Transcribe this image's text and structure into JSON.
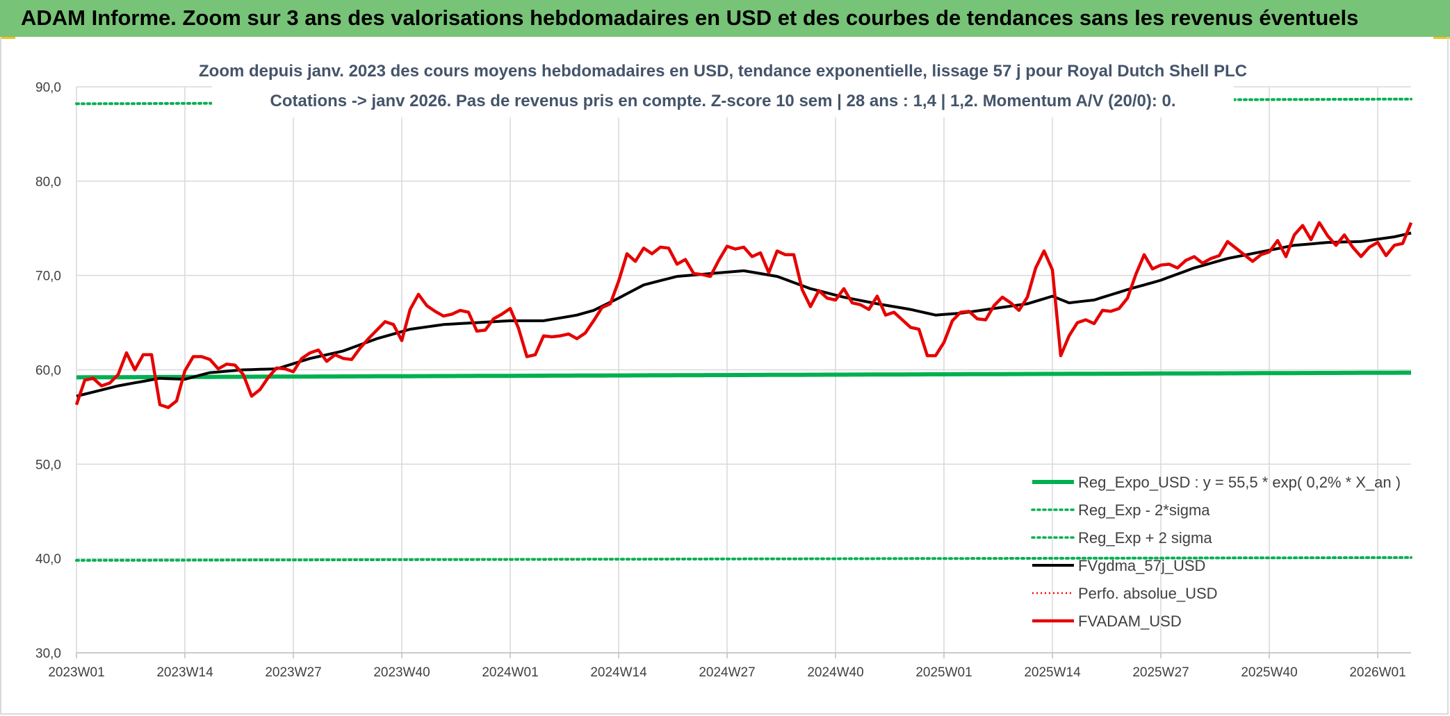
{
  "banner": {
    "title": "ADAM Informe. Zoom sur 3 ans des valorisations hebdomadaires en USD et des courbes de tendances sans les revenus éventuels"
  },
  "colors": {
    "banner_bg": "#77c377",
    "reg_expo": "#00b050",
    "fvgdma": "#000000",
    "fvadam": "#e60000",
    "perfo": "#ff0000",
    "grid": "#d9d9d9"
  },
  "chart_data": {
    "type": "line",
    "title_line1": "Zoom depuis janv. 2023 des cours moyens hebdomadaires en USD, tendance exponentielle, lissage 57 j pour Royal Dutch Shell PLC",
    "title_line2": "Cotations -> janv 2026. Pas de revenus pris en compte. Z-score 10 sem | 28 ans : 1,4  | 1,2. Momentum A/V (20/0): 0.",
    "ylim": [
      30,
      90
    ],
    "yticks": [
      "30,0",
      "40,0",
      "50,0",
      "60,0",
      "70,0",
      "80,0",
      "90,0"
    ],
    "ytick_values": [
      30,
      40,
      50,
      60,
      70,
      80,
      90
    ],
    "n_weeks": 161,
    "xticks": [
      "2023W01",
      "2023W14",
      "2023W27",
      "2023W40",
      "2024W01",
      "2024W14",
      "2024W27",
      "2024W40",
      "2025W01",
      "2025W14",
      "2025W27",
      "2025W40",
      "2026W01"
    ],
    "xtick_indices": [
      0,
      13,
      26,
      39,
      52,
      65,
      78,
      91,
      104,
      117,
      130,
      143,
      156
    ],
    "legend": [
      {
        "key": "reg_expo",
        "label": "Reg_Expo_USD : y = 55,5 * exp( 0,2% *  X_an )",
        "style": "solid-thick"
      },
      {
        "key": "minus2",
        "label": "Reg_Exp - 2*sigma",
        "style": "dotted-green"
      },
      {
        "key": "plus2",
        "label": "Reg_Exp + 2 sigma",
        "style": "dotted-green"
      },
      {
        "key": "fvgdma",
        "label": "FVgdma_57j_USD",
        "style": "solid-black"
      },
      {
        "key": "perfo",
        "label": "Perfo. absolue_USD",
        "style": "dotted-red"
      },
      {
        "key": "fvadam",
        "label": "FVADAM_USD",
        "style": "solid-red"
      }
    ],
    "series": [
      {
        "name": "Reg_Expo_USD",
        "knots": [
          [
            0,
            59.2
          ],
          [
            160,
            59.7
          ]
        ]
      },
      {
        "name": "Reg_Exp - 2*sigma",
        "knots": [
          [
            0,
            39.8
          ],
          [
            160,
            40.1
          ]
        ]
      },
      {
        "name": "Reg_Exp + 2 sigma",
        "knots": [
          [
            0,
            88.2
          ],
          [
            160,
            88.7
          ]
        ]
      },
      {
        "name": "FVgdma_57j_USD",
        "knots": [
          [
            0,
            57.2
          ],
          [
            5,
            58.3
          ],
          [
            10,
            59.1
          ],
          [
            13,
            59.0
          ],
          [
            16,
            59.7
          ],
          [
            20,
            60.0
          ],
          [
            24,
            60.1
          ],
          [
            28,
            61.2
          ],
          [
            32,
            62.0
          ],
          [
            36,
            63.3
          ],
          [
            40,
            64.3
          ],
          [
            44,
            64.8
          ],
          [
            48,
            65.0
          ],
          [
            52,
            65.2
          ],
          [
            56,
            65.2
          ],
          [
            60,
            65.8
          ],
          [
            62,
            66.3
          ],
          [
            65,
            67.6
          ],
          [
            68,
            69.0
          ],
          [
            72,
            69.9
          ],
          [
            76,
            70.2
          ],
          [
            80,
            70.5
          ],
          [
            84,
            69.9
          ],
          [
            88,
            68.6
          ],
          [
            92,
            67.7
          ],
          [
            96,
            67.0
          ],
          [
            100,
            66.4
          ],
          [
            103,
            65.8
          ],
          [
            106,
            66.0
          ],
          [
            110,
            66.5
          ],
          [
            114,
            67.0
          ],
          [
            117,
            67.8
          ],
          [
            119,
            67.1
          ],
          [
            122,
            67.4
          ],
          [
            126,
            68.5
          ],
          [
            130,
            69.5
          ],
          [
            134,
            70.8
          ],
          [
            138,
            71.8
          ],
          [
            142,
            72.5
          ],
          [
            146,
            73.2
          ],
          [
            150,
            73.5
          ],
          [
            154,
            73.6
          ],
          [
            158,
            74.1
          ],
          [
            160,
            74.5
          ]
        ]
      },
      {
        "name": "FVADAM_USD",
        "knots": [
          [
            0,
            56.3
          ],
          [
            1,
            58.9
          ],
          [
            2,
            59.1
          ],
          [
            3,
            58.3
          ],
          [
            4,
            58.6
          ],
          [
            5,
            59.5
          ],
          [
            6,
            61.8
          ],
          [
            7,
            60.0
          ],
          [
            8,
            61.6
          ],
          [
            9,
            61.6
          ],
          [
            10,
            56.3
          ],
          [
            11,
            56.0
          ],
          [
            12,
            56.7
          ],
          [
            13,
            59.9
          ],
          [
            14,
            61.4
          ],
          [
            15,
            61.4
          ],
          [
            16,
            61.1
          ],
          [
            17,
            60.1
          ],
          [
            18,
            60.6
          ],
          [
            19,
            60.5
          ],
          [
            20,
            59.5
          ],
          [
            21,
            57.2
          ],
          [
            22,
            57.9
          ],
          [
            23,
            59.2
          ],
          [
            24,
            60.2
          ],
          [
            25,
            60.1
          ],
          [
            26,
            59.8
          ],
          [
            27,
            61.2
          ],
          [
            28,
            61.8
          ],
          [
            29,
            62.1
          ],
          [
            30,
            60.9
          ],
          [
            31,
            61.6
          ],
          [
            32,
            61.2
          ],
          [
            33,
            61.1
          ],
          [
            34,
            62.3
          ],
          [
            35,
            63.3
          ],
          [
            36,
            64.2
          ],
          [
            37,
            65.1
          ],
          [
            38,
            64.8
          ],
          [
            39,
            63.1
          ],
          [
            40,
            66.4
          ],
          [
            41,
            68.0
          ],
          [
            42,
            66.8
          ],
          [
            43,
            66.2
          ],
          [
            44,
            65.7
          ],
          [
            45,
            65.9
          ],
          [
            46,
            66.3
          ],
          [
            47,
            66.1
          ],
          [
            48,
            64.1
          ],
          [
            49,
            64.2
          ],
          [
            50,
            65.4
          ],
          [
            51,
            65.9
          ],
          [
            52,
            66.5
          ],
          [
            53,
            64.4
          ],
          [
            54,
            61.4
          ],
          [
            55,
            61.6
          ],
          [
            56,
            63.6
          ],
          [
            57,
            63.5
          ],
          [
            58,
            63.6
          ],
          [
            59,
            63.8
          ],
          [
            60,
            63.3
          ],
          [
            61,
            63.9
          ],
          [
            62,
            65.2
          ],
          [
            63,
            66.6
          ],
          [
            64,
            67.0
          ],
          [
            65,
            69.4
          ],
          [
            66,
            72.3
          ],
          [
            67,
            71.5
          ],
          [
            68,
            72.9
          ],
          [
            69,
            72.3
          ],
          [
            70,
            73.0
          ],
          [
            71,
            72.9
          ],
          [
            72,
            71.2
          ],
          [
            73,
            71.7
          ],
          [
            74,
            70.2
          ],
          [
            75,
            70.1
          ],
          [
            76,
            69.9
          ],
          [
            77,
            71.6
          ],
          [
            78,
            73.1
          ],
          [
            79,
            72.8
          ],
          [
            80,
            73.0
          ],
          [
            81,
            72.0
          ],
          [
            82,
            72.4
          ],
          [
            83,
            70.3
          ],
          [
            84,
            72.6
          ],
          [
            85,
            72.2
          ],
          [
            86,
            72.2
          ],
          [
            87,
            68.5
          ],
          [
            88,
            66.7
          ],
          [
            89,
            68.4
          ],
          [
            90,
            67.6
          ],
          [
            91,
            67.4
          ],
          [
            92,
            68.6
          ],
          [
            93,
            67.1
          ],
          [
            94,
            66.9
          ],
          [
            95,
            66.4
          ],
          [
            96,
            67.8
          ],
          [
            97,
            65.8
          ],
          [
            98,
            66.1
          ],
          [
            99,
            65.3
          ],
          [
            100,
            64.5
          ],
          [
            101,
            64.3
          ],
          [
            102,
            61.5
          ],
          [
            103,
            61.5
          ],
          [
            104,
            62.9
          ],
          [
            105,
            65.2
          ],
          [
            106,
            66.1
          ],
          [
            107,
            66.2
          ],
          [
            108,
            65.4
          ],
          [
            109,
            65.3
          ],
          [
            110,
            66.8
          ],
          [
            111,
            67.7
          ],
          [
            112,
            67.1
          ],
          [
            113,
            66.3
          ],
          [
            114,
            67.7
          ],
          [
            115,
            70.8
          ],
          [
            116,
            72.6
          ],
          [
            117,
            70.6
          ],
          [
            118,
            61.5
          ],
          [
            119,
            63.6
          ],
          [
            120,
            65.0
          ],
          [
            121,
            65.3
          ],
          [
            122,
            64.9
          ],
          [
            123,
            66.3
          ],
          [
            124,
            66.2
          ],
          [
            125,
            66.5
          ],
          [
            126,
            67.6
          ],
          [
            127,
            70.1
          ],
          [
            128,
            72.2
          ],
          [
            129,
            70.7
          ],
          [
            130,
            71.1
          ],
          [
            131,
            71.2
          ],
          [
            132,
            70.8
          ],
          [
            133,
            71.6
          ],
          [
            134,
            72.0
          ],
          [
            135,
            71.3
          ],
          [
            136,
            71.8
          ],
          [
            137,
            72.1
          ],
          [
            138,
            73.6
          ],
          [
            139,
            72.9
          ],
          [
            140,
            72.2
          ],
          [
            141,
            71.5
          ],
          [
            142,
            72.2
          ],
          [
            143,
            72.5
          ],
          [
            144,
            73.7
          ],
          [
            145,
            72.0
          ],
          [
            146,
            74.3
          ],
          [
            147,
            75.3
          ],
          [
            148,
            73.8
          ],
          [
            149,
            75.6
          ],
          [
            150,
            74.2
          ],
          [
            151,
            73.2
          ],
          [
            152,
            74.3
          ],
          [
            153,
            73.0
          ],
          [
            154,
            72.0
          ],
          [
            155,
            73.0
          ],
          [
            156,
            73.5
          ],
          [
            157,
            72.1
          ],
          [
            158,
            73.2
          ],
          [
            159,
            73.4
          ],
          [
            160,
            75.6
          ]
        ]
      }
    ]
  }
}
